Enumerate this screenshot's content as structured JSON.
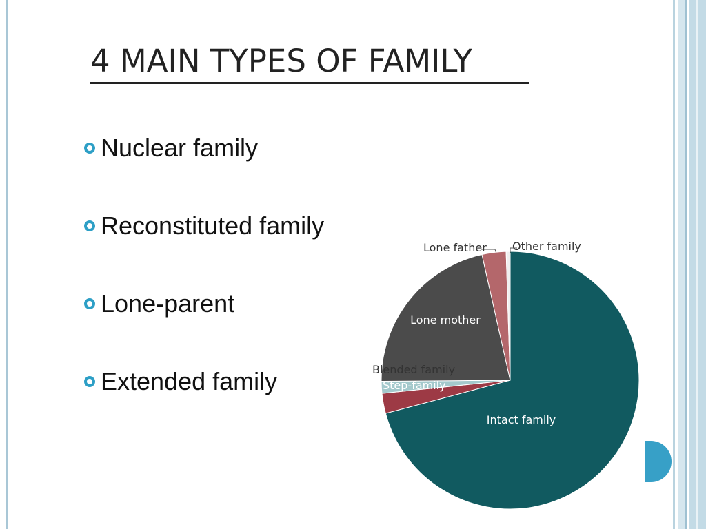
{
  "slide": {
    "title": "4 MAIN TYPES OF FAMILY",
    "bullets": [
      "Nuclear family",
      "Reconstituted family",
      "Lone-parent",
      "Extended family"
    ]
  },
  "colors": {
    "accent": "#37a0c7",
    "bullet": "#2d9fc6",
    "intact": "#115a60",
    "step": "#9d3a45",
    "blended": "#a4c9cc",
    "lone_mother": "#4b4b4b",
    "lone_father": "#b4676b",
    "other": "#f0f0f0"
  },
  "chart_data": {
    "type": "pie",
    "title": "",
    "slices": [
      {
        "label": "Intact family",
        "value": 70.5,
        "color": "#115a60"
      },
      {
        "label": "Step-family",
        "value": 2.5,
        "color": "#9d3a45"
      },
      {
        "label": "Blended family",
        "value": 1.5,
        "color": "#a4c9cc"
      },
      {
        "label": "Lone mother",
        "value": 21.5,
        "color": "#4b4b4b"
      },
      {
        "label": "Lone father",
        "value": 3.0,
        "color": "#b4676b"
      },
      {
        "label": "Other family",
        "value": 0.5,
        "color": "#f0f0f0"
      }
    ]
  }
}
